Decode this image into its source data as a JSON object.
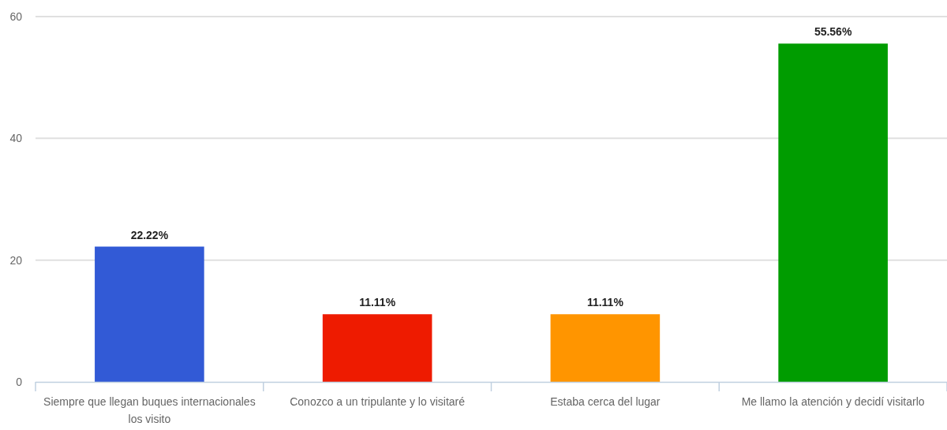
{
  "chart_data": {
    "type": "bar",
    "categories": [
      "Siempre que llegan buques internacionales los visito",
      "Conozco a un tripulante y lo visitaré",
      "Estaba cerca del lugar",
      "Me llamo la atención y decidí visitarlo"
    ],
    "values": [
      22.22,
      11.11,
      11.11,
      55.56
    ],
    "colors": [
      "#325ad6",
      "#ee1b00",
      "#ff9500",
      "#009c00"
    ],
    "value_labels": [
      "22.22%",
      "11.11%",
      "11.11%",
      "55.56%"
    ],
    "ylim": [
      0,
      60
    ],
    "yticks": [
      0,
      20,
      40,
      60
    ],
    "grid": "y"
  }
}
